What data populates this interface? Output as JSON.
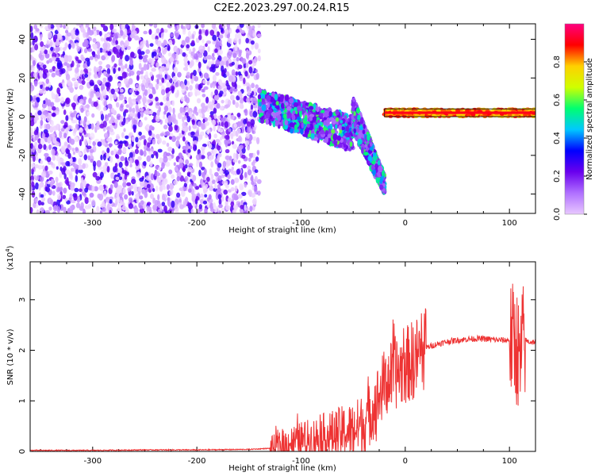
{
  "figure": {
    "title": "C2E2.2023.297.00.24.R15"
  },
  "chart_data": [
    {
      "type": "heatmap",
      "xlabel": "Height of straight line (km)",
      "ylabel": "Frequency (Hz)",
      "xlim": [
        -360,
        125
      ],
      "ylim": [
        -50,
        48
      ],
      "xticks": [
        -300,
        -200,
        -100,
        0,
        100
      ],
      "yticks": [
        -40,
        -20,
        0,
        20,
        40
      ],
      "colorbar": {
        "label": "Normalized spectral amplitude",
        "range": [
          0,
          1
        ],
        "ticks": [
          0.0,
          0.2,
          0.4,
          0.6,
          0.8
        ],
        "tick_labels": [
          "0.0",
          "0.2",
          "0.4",
          "0.6",
          "0.8"
        ]
      },
      "colormap": [
        "#ffffff",
        "#e8c8ff",
        "#b070ff",
        "#6a00ee",
        "#0000ff",
        "#00c8ff",
        "#00ff70",
        "#d0ff00",
        "#ffd000",
        "#ff0000",
        "#ff0080"
      ],
      "regions": [
        {
          "x": [
            -360,
            -140
          ],
          "f": [
            -50,
            48
          ],
          "amp": 0.08
        },
        {
          "x": [
            -140,
            -50
          ],
          "f_start": [
            -2,
            14
          ],
          "f_end": [
            -18,
            0
          ],
          "amp": 0.4
        },
        {
          "x": [
            -50,
            -20
          ],
          "f_start": [
            10,
            -8
          ],
          "f_end": [
            -30,
            -40
          ],
          "amp": 0.25
        },
        {
          "x": [
            -20,
            125
          ],
          "f": [
            0,
            4
          ],
          "amp": 0.92
        }
      ]
    },
    {
      "type": "line",
      "xlabel": "Height of straight line (km)",
      "ylabel": "SNR (10 * v/v)",
      "y_multiplier": "(x10",
      "y_multiplier_exp": "4",
      "y_multiplier_close": ")",
      "xlim": [
        -360,
        125
      ],
      "ylim": [
        0,
        3.75
      ],
      "xticks": [
        -300,
        -200,
        -100,
        0,
        100
      ],
      "yticks": [
        0,
        1,
        2,
        3
      ],
      "color": "#ee3333",
      "series": [
        {
          "x": [
            -360,
            -300,
            -250,
            -200,
            -150,
            -130,
            -120,
            -110,
            -100,
            -90,
            -80,
            -70,
            -60,
            -50,
            -40,
            -35,
            -30,
            -25,
            -20,
            -15,
            -10,
            -5,
            0,
            10,
            20,
            30,
            40,
            50,
            60,
            70,
            80,
            90,
            100,
            105,
            108,
            110,
            112,
            115,
            120,
            125
          ],
          "y": [
            0.01,
            0.01,
            0.02,
            0.02,
            0.03,
            0.05,
            0.1,
            0.18,
            0.22,
            0.25,
            0.3,
            0.33,
            0.38,
            0.42,
            0.55,
            0.7,
            0.9,
            1.1,
            1.35,
            1.45,
            1.55,
            1.6,
            1.7,
            1.85,
            2.05,
            2.12,
            2.17,
            2.2,
            2.22,
            2.23,
            2.22,
            2.2,
            2.2,
            2.15,
            2.05,
            1.5,
            2.1,
            2.2,
            2.16,
            2.17
          ]
        }
      ]
    }
  ]
}
